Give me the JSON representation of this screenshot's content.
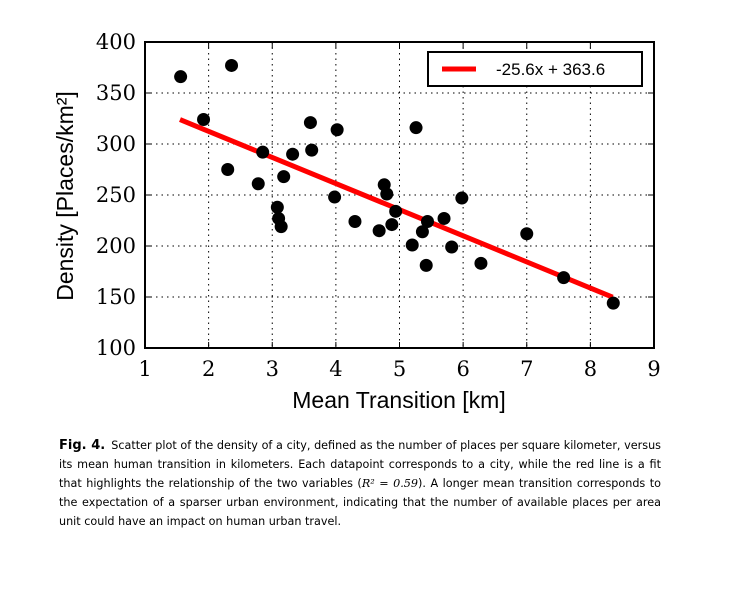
{
  "chart_data": {
    "type": "scatter",
    "xlabel": "Mean Transition [km]",
    "ylabel": "Density [Places/km²]",
    "xlim": [
      1,
      9
    ],
    "ylim": [
      100,
      400
    ],
    "xticks": [
      "1",
      "2",
      "3",
      "4",
      "5",
      "6",
      "7",
      "8",
      "9"
    ],
    "yticks": [
      "100",
      "150",
      "200",
      "250",
      "300",
      "350",
      "400"
    ],
    "grid": true,
    "legend_position": "top-right",
    "series": [
      {
        "type": "scatter",
        "color": "#000000",
        "points": [
          [
            1.56,
            366
          ],
          [
            1.92,
            324
          ],
          [
            2.3,
            275
          ],
          [
            2.36,
            377
          ],
          [
            2.78,
            261
          ],
          [
            2.85,
            292
          ],
          [
            3.08,
            238
          ],
          [
            3.1,
            227
          ],
          [
            3.14,
            219
          ],
          [
            3.18,
            268
          ],
          [
            3.32,
            290
          ],
          [
            3.6,
            321
          ],
          [
            3.62,
            294
          ],
          [
            3.98,
            248
          ],
          [
            4.02,
            314
          ],
          [
            4.3,
            224
          ],
          [
            4.68,
            215
          ],
          [
            4.76,
            260
          ],
          [
            4.8,
            251
          ],
          [
            4.88,
            221
          ],
          [
            4.94,
            234
          ],
          [
            5.2,
            201
          ],
          [
            5.26,
            316
          ],
          [
            5.36,
            214
          ],
          [
            5.42,
            181
          ],
          [
            5.44,
            224
          ],
          [
            5.7,
            227
          ],
          [
            5.82,
            199
          ],
          [
            5.98,
            247
          ],
          [
            6.28,
            183
          ],
          [
            7.0,
            212
          ],
          [
            7.58,
            169
          ],
          [
            8.36,
            144
          ]
        ]
      },
      {
        "type": "line",
        "name": "-25.6x + 363.6",
        "color": "#ff0000",
        "slope": -25.6,
        "intercept": 363.6,
        "x_range": [
          1.55,
          8.35
        ]
      }
    ]
  },
  "caption": {
    "label": "Fig. 4.",
    "text_before": "Scatter plot of the density of a city, defined as the number of places per square kilometer, versus its mean human transition in kilometers. Each datapoint corresponds to a city, while the red line is a fit that highlights the relationship of the two variables (",
    "math": "R² = 0.59",
    "text_after": "). A longer mean transition corresponds to the expectation of a sparser urban environment, indicating that the number of available places per area unit could have an impact on human urban travel."
  }
}
